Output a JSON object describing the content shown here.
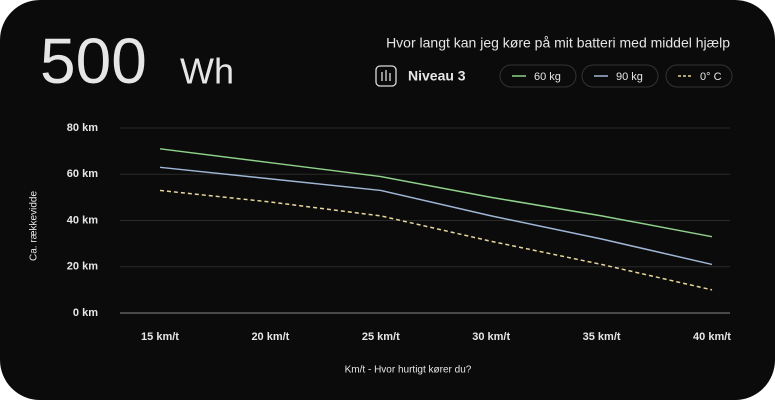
{
  "header": {
    "value": "500",
    "unit": "Wh",
    "subtitle": "Hvor langt kan jeg køre på mit batteri med middel hjælp",
    "level": "Niveau 3"
  },
  "chart_data": {
    "type": "line",
    "categories": [
      "15 km/t",
      "20 km/t",
      "25 km/t",
      "30 km/t",
      "35 km/t",
      "40 km/t"
    ],
    "series": [
      {
        "name": "60 kg",
        "color": "#8fd18a",
        "values": [
          71,
          65,
          59,
          50,
          42,
          33
        ]
      },
      {
        "name": "90 kg",
        "color": "#9fb6d6",
        "values": [
          63,
          58,
          53,
          42,
          32,
          21
        ]
      },
      {
        "name": "0° C",
        "color": "#e8d79a",
        "dashed": true,
        "values": [
          53,
          48,
          42,
          31,
          21,
          10
        ]
      }
    ],
    "ylim": [
      0,
      80
    ],
    "yticks": [
      {
        "value": 0,
        "label": "0 km"
      },
      {
        "value": 20,
        "label": "20 km"
      },
      {
        "value": 40,
        "label": "40 km"
      },
      {
        "value": 60,
        "label": "60 km"
      },
      {
        "value": 80,
        "label": "80 km"
      }
    ],
    "grid": true,
    "ylabel": "Ca. rækkevidde",
    "xlabel": "Km/t - Hvor hurtigt kører du?"
  }
}
